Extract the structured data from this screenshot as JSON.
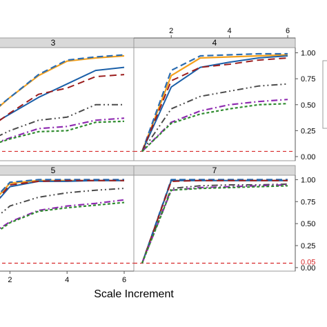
{
  "colors": {
    "strip_fill": "#d9d9d9",
    "panel_border": "#9a9a9a",
    "reference": "#d62728"
  },
  "chart_data": {
    "type": "line",
    "xlabel": "Scale Increment",
    "ylabel": "",
    "xlim": [
      1,
      6
    ],
    "ylim": [
      0,
      1
    ],
    "x_ticks": [
      2,
      4,
      6
    ],
    "y_ticks": [
      0.0,
      0.25,
      0.5,
      0.75,
      1.0
    ],
    "y_tick_labels": [
      "0.00",
      "0.25",
      "0.50",
      "0.75",
      "1.00"
    ],
    "x_tick_labels": [
      "2",
      "4",
      "6"
    ],
    "grid": false,
    "reference_line": {
      "value": 0.05,
      "label": "0.05",
      "style": "dashed"
    },
    "series_styles": [
      {
        "color": "#f4a11d",
        "dash": "solid",
        "width": 2.2
      },
      {
        "color": "#2b6cb0",
        "dash": "9,5",
        "width": 2.2
      },
      {
        "color": "#1a5fa8",
        "dash": "solid",
        "width": 2.0
      },
      {
        "color": "#9b1c1c",
        "dash": "10,6",
        "width": 2.0
      },
      {
        "color": "#4a4a4a",
        "dash": "9,4,2,4,2,4",
        "width": 2.0
      },
      {
        "color": "#8e2bb0",
        "dash": "9,4,2,4",
        "width": 2.2
      },
      {
        "color": "#2e8b2e",
        "dash": "4,3",
        "width": 2.2
      }
    ],
    "panels": [
      {
        "label": "3",
        "series": [
          {
            "x": [
              1,
              2,
              3,
              4,
              5,
              6
            ],
            "values": [
              0.33,
              0.57,
              0.78,
              0.92,
              0.95,
              0.97
            ]
          },
          {
            "x": [
              1,
              2,
              3,
              4,
              5,
              6
            ],
            "values": [
              0.35,
              0.57,
              0.79,
              0.93,
              0.96,
              0.98
            ]
          },
          {
            "x": [
              1,
              2,
              3,
              4,
              5,
              6
            ],
            "values": [
              0.25,
              0.41,
              0.57,
              0.7,
              0.83,
              0.86
            ]
          },
          {
            "x": [
              1,
              2,
              3,
              4,
              5,
              6
            ],
            "values": [
              0.22,
              0.42,
              0.6,
              0.66,
              0.77,
              0.79
            ]
          },
          {
            "x": [
              1,
              2,
              3,
              4,
              5,
              6
            ],
            "values": [
              0.12,
              0.25,
              0.35,
              0.38,
              0.5,
              0.5
            ]
          },
          {
            "x": [
              1,
              2,
              3,
              4,
              5,
              6
            ],
            "values": [
              0.08,
              0.18,
              0.27,
              0.29,
              0.35,
              0.37
            ]
          },
          {
            "x": [
              1,
              2,
              3,
              4,
              5,
              6
            ],
            "values": [
              0.08,
              0.17,
              0.24,
              0.25,
              0.33,
              0.34
            ]
          }
        ]
      },
      {
        "label": "4",
        "series": [
          {
            "x": [
              1,
              2,
              3,
              4,
              5,
              6
            ],
            "values": [
              0.05,
              0.78,
              0.95,
              0.96,
              0.97,
              0.98
            ]
          },
          {
            "x": [
              1,
              2,
              3,
              4,
              5,
              6
            ],
            "values": [
              0.05,
              0.83,
              0.97,
              0.98,
              0.99,
              0.99
            ]
          },
          {
            "x": [
              1,
              2,
              3,
              4,
              5,
              6
            ],
            "values": [
              0.05,
              0.67,
              0.86,
              0.91,
              0.95,
              0.97
            ]
          },
          {
            "x": [
              1,
              2,
              3,
              4,
              5,
              6
            ],
            "values": [
              0.05,
              0.73,
              0.86,
              0.89,
              0.93,
              0.95
            ]
          },
          {
            "x": [
              1,
              2,
              3,
              4,
              5,
              6
            ],
            "values": [
              0.05,
              0.46,
              0.58,
              0.63,
              0.68,
              0.7
            ]
          },
          {
            "x": [
              1,
              2,
              3,
              4,
              5,
              6
            ],
            "values": [
              0.05,
              0.33,
              0.44,
              0.5,
              0.53,
              0.55
            ]
          },
          {
            "x": [
              1,
              2,
              3,
              4,
              5,
              6
            ],
            "values": [
              0.05,
              0.32,
              0.41,
              0.46,
              0.5,
              0.51
            ]
          }
        ]
      },
      {
        "label": "5",
        "series": [
          {
            "x": [
              1,
              2,
              3,
              4,
              5,
              6
            ],
            "values": [
              0.6,
              0.96,
              0.99,
              0.99,
              0.99,
              0.99
            ]
          },
          {
            "x": [
              1,
              2,
              3,
              4,
              5,
              6
            ],
            "values": [
              0.62,
              0.97,
              1.0,
              1.0,
              1.0,
              1.0
            ]
          },
          {
            "x": [
              1,
              2,
              3,
              4,
              5,
              6
            ],
            "values": [
              0.55,
              0.92,
              0.98,
              0.98,
              0.99,
              0.99
            ]
          },
          {
            "x": [
              1,
              2,
              3,
              4,
              5,
              6
            ],
            "values": [
              0.56,
              0.94,
              0.98,
              0.99,
              0.99,
              0.99
            ]
          },
          {
            "x": [
              1,
              2,
              3,
              4,
              5,
              6
            ],
            "values": [
              0.43,
              0.7,
              0.8,
              0.85,
              0.88,
              0.9
            ]
          },
          {
            "x": [
              1,
              2,
              3,
              4,
              5,
              6
            ],
            "values": [
              0.31,
              0.52,
              0.65,
              0.7,
              0.73,
              0.77
            ]
          },
          {
            "x": [
              1,
              2,
              3,
              4,
              5,
              6
            ],
            "values": [
              0.28,
              0.51,
              0.64,
              0.68,
              0.71,
              0.74
            ]
          }
        ]
      },
      {
        "label": "7",
        "series": [
          {
            "x": [
              1,
              2,
              3,
              4,
              5,
              6
            ],
            "values": [
              0.05,
              0.99,
              0.99,
              0.99,
              0.99,
              0.99
            ]
          },
          {
            "x": [
              1,
              2,
              3,
              4,
              5,
              6
            ],
            "values": [
              0.05,
              1.0,
              1.0,
              1.0,
              1.0,
              1.0
            ]
          },
          {
            "x": [
              1,
              2,
              3,
              4,
              5,
              6
            ],
            "values": [
              0.05,
              0.99,
              0.99,
              0.99,
              0.99,
              0.99
            ]
          },
          {
            "x": [
              1,
              2,
              3,
              4,
              5,
              6
            ],
            "values": [
              0.05,
              0.98,
              0.99,
              0.99,
              0.99,
              0.99
            ]
          },
          {
            "x": [
              1,
              2,
              3,
              4,
              5,
              6
            ],
            "values": [
              0.05,
              0.9,
              0.93,
              0.94,
              0.94,
              0.95
            ]
          },
          {
            "x": [
              1,
              2,
              3,
              4,
              5,
              6
            ],
            "values": [
              0.05,
              0.88,
              0.91,
              0.92,
              0.93,
              0.94
            ]
          },
          {
            "x": [
              1,
              2,
              3,
              4,
              5,
              6
            ],
            "values": [
              0.05,
              0.88,
              0.9,
              0.91,
              0.92,
              0.93
            ]
          }
        ]
      }
    ]
  }
}
